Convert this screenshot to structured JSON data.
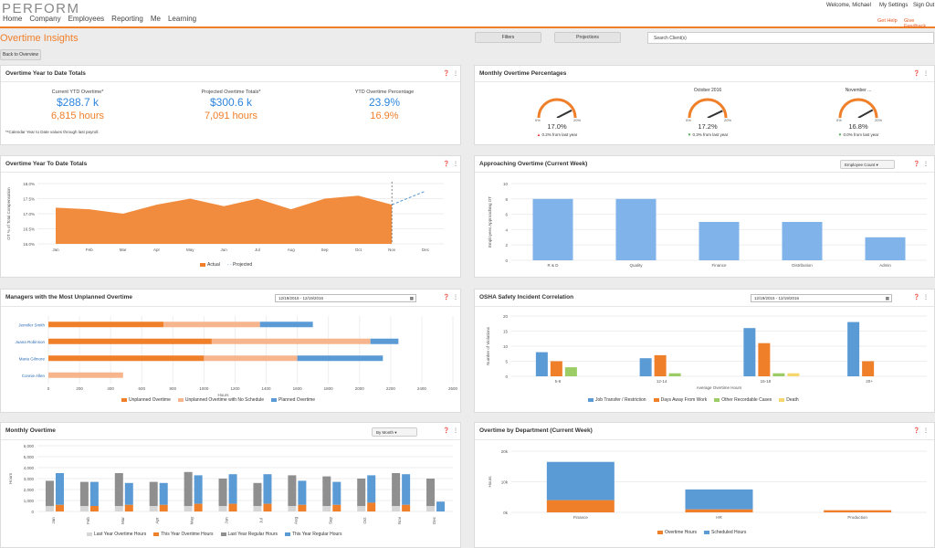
{
  "app": {
    "logo": "PERFORM",
    "nav": [
      "Home",
      "Company",
      "Employees",
      "Reporting",
      "Me",
      "Learning"
    ],
    "welcome": "Welcome, Michael",
    "settings": "My Settings",
    "signout": "Sign Out",
    "help": "Get Help",
    "feedback": "Give Feedback"
  },
  "page": {
    "title": "Overtime Insights",
    "back": "Back to Overview",
    "filters": "Filters",
    "projections": "Projections",
    "search_placeholder": "Search Client(s)"
  },
  "ytd": {
    "title": "Overtime Year to Date Totals",
    "kpis": [
      {
        "label": "Current YTD Overtime*",
        "money": "$288.7 k",
        "hours": "6,815 hours"
      },
      {
        "label": "Projected Overtime Totals*",
        "money": "$300.6 k",
        "hours": "7,091 hours"
      },
      {
        "label": "YTD Overtime Percentage",
        "money": "23.9%",
        "hours": "16.9%"
      }
    ],
    "note": "**Calendar Year to Date values through last payroll."
  },
  "monthly_pct": {
    "title": "Monthly Overtime Percentages",
    "gauges": [
      {
        "label": "",
        "value": "17.0%",
        "min": "0%",
        "max": "20%",
        "change": "0.2% from last year",
        "dir": "up",
        "level": 0.85
      },
      {
        "label": "October 2016",
        "value": "17.2%",
        "min": "0%",
        "max": "20%",
        "change": "0.3% from last year",
        "dir": "down",
        "level": 0.86
      },
      {
        "label": "November ...",
        "value": "16.8%",
        "min": "0%",
        "max": "20%",
        "change": "0.0% from last year",
        "dir": "down",
        "level": 0.84
      }
    ]
  },
  "ytd_area": {
    "title": "Overtime Year To Date Totals",
    "legend_actual": "Actual",
    "legend_projected": "Projected"
  },
  "approaching": {
    "title": "Approaching Overtime (Current Week)",
    "dropdown": "Employee Count"
  },
  "managers": {
    "title": "Managers with the Most Unplanned Overtime",
    "dates": "12/19/2015 - 12/19/2016",
    "legend": [
      "Unplanned Overtime",
      "Unplanned Overtime with No Schedule",
      "Planned Overtime"
    ]
  },
  "osha": {
    "title": "OSHA Safety Incident Correlation",
    "dates": "12/19/2015 - 12/19/2016",
    "legend": [
      "Job Transfer / Restriction",
      "Days Away From Work",
      "Other Recordable Cases",
      "Death"
    ]
  },
  "monthly_ot": {
    "title": "Monthly Overtime",
    "dropdown": "By Month",
    "legend": [
      "Last Year Overtime Hours",
      "This Year Overtime Hours",
      "Last Year Regular Hours",
      "This Year Regular Hours"
    ]
  },
  "dept": {
    "title": "Overtime by Department (Current Week)",
    "legend": [
      "Overtime Hours",
      "Scheduled Hours"
    ]
  },
  "colors": {
    "orange": "#f07f2a",
    "blue": "#5b9bd5",
    "lightblue": "#7fb3ea",
    "peach": "#f6b58d",
    "green": "#9ccc65",
    "yellow": "#f5d76e",
    "grey": "#b5b5b5",
    "lightgrey": "#d6d6d6"
  },
  "chart_data": [
    {
      "type": "area",
      "title": "Overtime Year To Date Totals",
      "ylabel": "OT % of Total Compensation",
      "categories": [
        "Jan",
        "Feb",
        "Mar",
        "Apr",
        "May",
        "Jun",
        "Jul",
        "Aug",
        "Sep",
        "Oct",
        "Nov",
        "Dec"
      ],
      "y_ticks": [
        "16.0%",
        "16.5%",
        "17.0%",
        "17.5%",
        "18.0%"
      ],
      "ylim": [
        16.0,
        18.0
      ],
      "series": [
        {
          "name": "Actual",
          "values": [
            17.2,
            17.15,
            17.0,
            17.3,
            17.5,
            17.25,
            17.5,
            17.15,
            17.5,
            17.6,
            17.3,
            null
          ]
        },
        {
          "name": "Projected",
          "values": [
            null,
            null,
            null,
            null,
            null,
            null,
            null,
            null,
            null,
            null,
            17.3,
            17.75
          ]
        }
      ]
    },
    {
      "type": "bar",
      "title": "Approaching Overtime (Current Week)",
      "ylabel": "Employees Approaching OT",
      "categories": [
        "R & D",
        "Quality",
        "Finance",
        "Distribution",
        "Admin"
      ],
      "values": [
        8,
        8,
        5,
        5,
        3
      ],
      "ylim": [
        0,
        10
      ],
      "y_ticks": [
        "0",
        "2",
        "4",
        "6",
        "8",
        "10"
      ]
    },
    {
      "type": "bar",
      "orientation": "horizontal",
      "stacked": true,
      "title": "Managers with the Most Unplanned Overtime",
      "xlabel": "Hours",
      "categories": [
        "Jennifer Smith",
        "Juana Robinson",
        "Maria Gilmore",
        "Connie Allen"
      ],
      "x_ticks": [
        "0",
        "200",
        "400",
        "600",
        "800",
        "1000",
        "1200",
        "1400",
        "1600",
        "1800",
        "2000",
        "2200",
        "2400",
        "2600"
      ],
      "xlim": [
        0,
        2600
      ],
      "series": [
        {
          "name": "Unplanned Overtime",
          "values": [
            740,
            1050,
            1000,
            0
          ]
        },
        {
          "name": "Unplanned Overtime with No Schedule",
          "values": [
            620,
            1020,
            600,
            480
          ]
        },
        {
          "name": "Planned Overtime",
          "values": [
            340,
            180,
            550,
            0
          ]
        }
      ]
    },
    {
      "type": "bar",
      "title": "OSHA Safety Incident Correlation",
      "ylabel": "Number of Violations",
      "xlabel": "Average Overtime Hours",
      "categories": [
        "5-8",
        "12-14",
        "15-18",
        "20+"
      ],
      "y_ticks": [
        "0",
        "5",
        "10",
        "15",
        "20"
      ],
      "ylim": [
        0,
        20
      ],
      "series": [
        {
          "name": "Job Transfer / Restriction",
          "values": [
            8,
            6,
            16,
            18
          ]
        },
        {
          "name": "Days Away From Work",
          "values": [
            5,
            7,
            11,
            5
          ]
        },
        {
          "name": "Other Recordable Cases",
          "values": [
            3,
            1,
            1,
            0
          ]
        },
        {
          "name": "Death",
          "values": [
            0,
            0,
            1,
            0
          ]
        }
      ]
    },
    {
      "type": "bar",
      "title": "Monthly Overtime",
      "ylabel": "Hours",
      "categories": [
        "Jan",
        "Feb",
        "Mar",
        "Apr",
        "May",
        "Jun",
        "Jul",
        "Aug",
        "Sep",
        "Oct",
        "Nov",
        "Dec"
      ],
      "y_ticks": [
        "0",
        "1,000",
        "2,000",
        "3,000",
        "4,000",
        "5,000",
        "6,000"
      ],
      "ylim": [
        0,
        6000
      ],
      "series": [
        {
          "name": "Last Year Overtime Hours",
          "values": [
            500,
            500,
            500,
            500,
            500,
            500,
            500,
            500,
            500,
            500,
            500,
            500
          ]
        },
        {
          "name": "This Year Overtime Hours",
          "values": [
            600,
            500,
            600,
            600,
            700,
            700,
            700,
            600,
            600,
            800,
            600,
            0
          ]
        },
        {
          "name": "Last Year Regular Hours",
          "values": [
            2800,
            2700,
            3500,
            2700,
            3600,
            3000,
            2600,
            3300,
            3200,
            3000,
            3500,
            3000
          ]
        },
        {
          "name": "This Year Regular Hours",
          "values": [
            3500,
            2700,
            2600,
            2600,
            3300,
            3400,
            3400,
            2800,
            2700,
            3300,
            3400,
            900
          ]
        }
      ]
    },
    {
      "type": "bar",
      "stacked": true,
      "title": "Overtime by Department (Current Week)",
      "ylabel": "Hours",
      "categories": [
        "Finance",
        "HR",
        "Production"
      ],
      "y_ticks": [
        "0k",
        "10k",
        "20k"
      ],
      "ylim": [
        0,
        20000
      ],
      "series": [
        {
          "name": "Overtime Hours",
          "values": [
            4000,
            1000,
            700
          ]
        },
        {
          "name": "Scheduled Hours",
          "values": [
            12500,
            6500,
            0
          ]
        }
      ]
    }
  ]
}
